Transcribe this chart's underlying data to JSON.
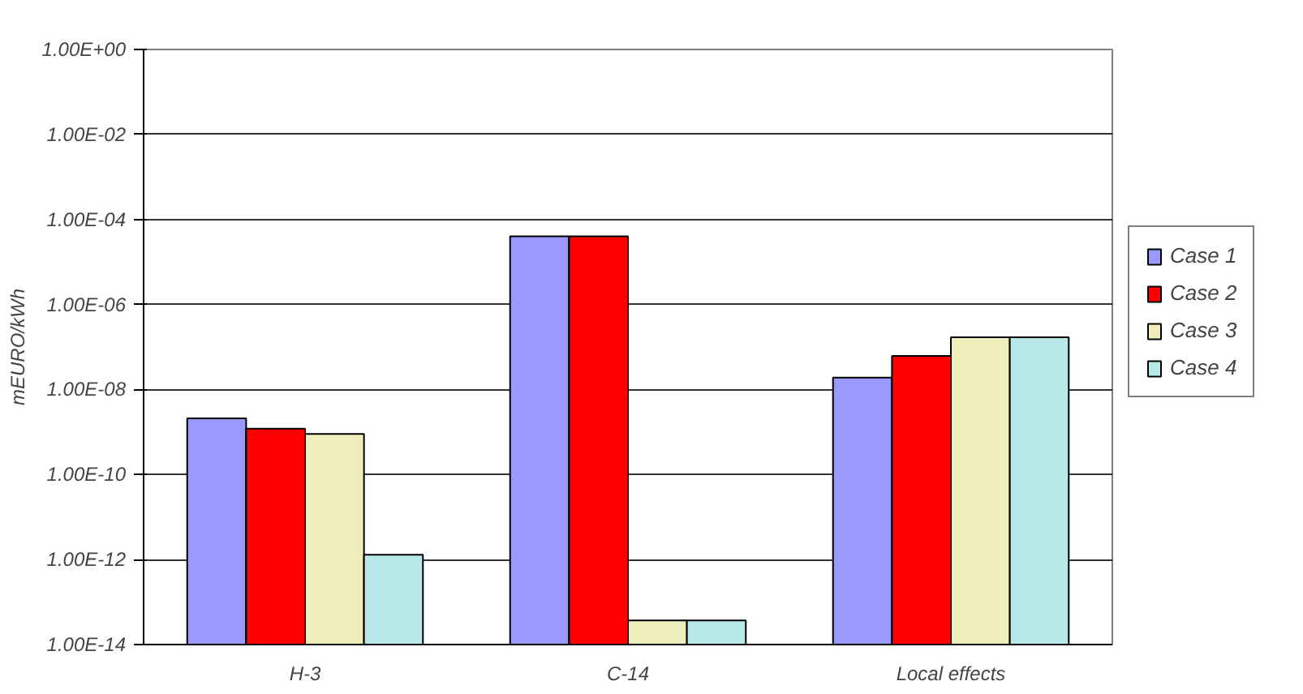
{
  "chart_data": {
    "type": "bar",
    "ylabel": "mEURO/kWh",
    "categories": [
      "H-3",
      "C-14",
      "Local effects"
    ],
    "series": [
      {
        "name": "Case 1",
        "color": "#9999ff",
        "values": [
          2.1e-09,
          4e-05,
          1.9e-08
        ]
      },
      {
        "name": "Case 2",
        "color": "#ff0000",
        "values": [
          1.2e-09,
          4e-05,
          6.2e-08
        ]
      },
      {
        "name": "Case 3",
        "color": "#eeeebb",
        "values": [
          9e-10,
          3.7e-14,
          1.7e-07
        ]
      },
      {
        "name": "Case 4",
        "color": "#b8e8e8",
        "values": [
          1.3e-12,
          3.7e-14,
          1.7e-07
        ]
      }
    ],
    "log": "y",
    "ylim": [
      1e-14,
      1
    ],
    "yticks": [
      {
        "value": 1,
        "label": "1.00E+00"
      },
      {
        "value": 0.01,
        "label": "1.00E-02"
      },
      {
        "value": 0.0001,
        "label": "1.00E-04"
      },
      {
        "value": 1e-06,
        "label": "1.00E-06"
      },
      {
        "value": 1e-08,
        "label": "1.00E-08"
      },
      {
        "value": 1e-10,
        "label": "1.00E-10"
      },
      {
        "value": 1e-12,
        "label": "1.00E-12"
      },
      {
        "value": 1e-14,
        "label": "1.00E-14"
      }
    ],
    "grid": "y",
    "legend": "right"
  }
}
